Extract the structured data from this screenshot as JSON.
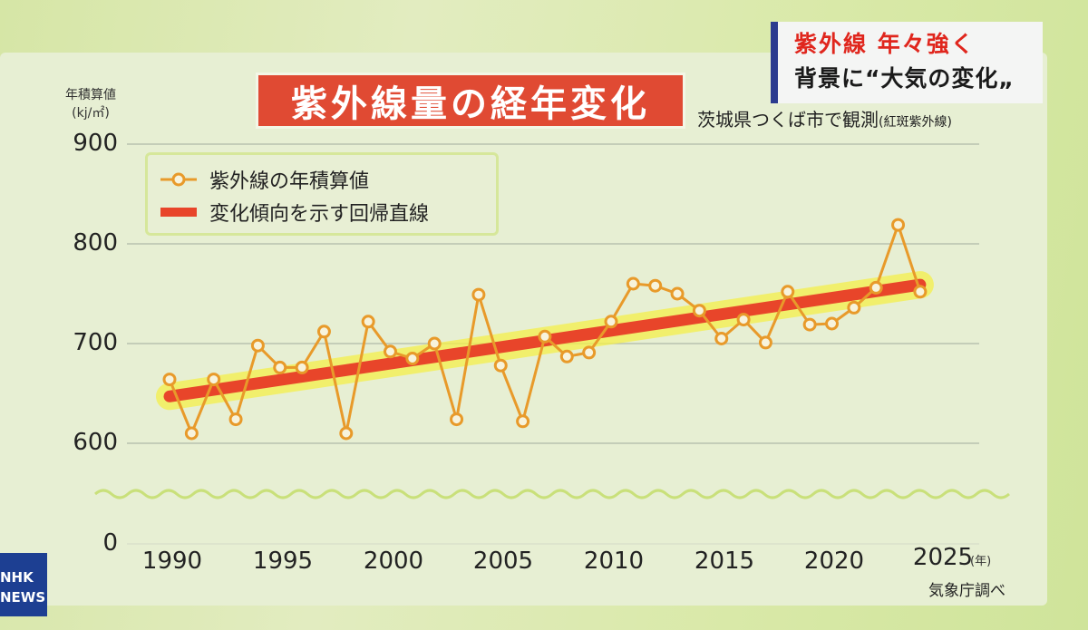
{
  "headline": {
    "line1": "紫外線 年々強く",
    "line2": "背景に“大気の変化„"
  },
  "broadcaster": {
    "logo_line1": "NHK",
    "logo_line2": "NEWS"
  },
  "chart_data": {
    "type": "line",
    "title": "紫外線量の経年変化",
    "subtitle": "茨城県つくば市で観測",
    "subtitle_note": "(紅斑紫外線)",
    "ylabel": "年積算値",
    "yunit": "(kj/㎡)",
    "xunit": "(年)",
    "source": "気象庁調べ",
    "ylim": [
      0,
      900
    ],
    "axis_break": [
      0,
      600
    ],
    "xlim": [
      1990,
      2025
    ],
    "yticks": [
      "900",
      "800",
      "700",
      "600",
      "0"
    ],
    "xticks": [
      "1990",
      "1995",
      "2000",
      "2005",
      "2010",
      "2015",
      "2020",
      "2025"
    ],
    "legend_placement": "top-left",
    "grid": true,
    "series": [
      {
        "name": "紫外線の年積算値",
        "color": "#e89a2a",
        "x": [
          1990,
          1991,
          1992,
          1993,
          1994,
          1995,
          1996,
          1997,
          1998,
          1999,
          2000,
          2001,
          2002,
          2003,
          2004,
          2005,
          2006,
          2007,
          2008,
          2009,
          2010,
          2011,
          2012,
          2013,
          2014,
          2015,
          2016,
          2017,
          2018,
          2019,
          2020,
          2021,
          2022,
          2023,
          2024
        ],
        "values": [
          664,
          610,
          664,
          624,
          698,
          676,
          676,
          712,
          610,
          722,
          692,
          685,
          700,
          624,
          749,
          678,
          622,
          707,
          687,
          691,
          722,
          760,
          758,
          750,
          733,
          705,
          724,
          701,
          752,
          719,
          720,
          736,
          756,
          819,
          752
        ]
      },
      {
        "name": "変化傾向を示す回帰直線",
        "color": "#e8452a",
        "x": [
          1990,
          2024
        ],
        "values": [
          647,
          759
        ]
      }
    ]
  }
}
